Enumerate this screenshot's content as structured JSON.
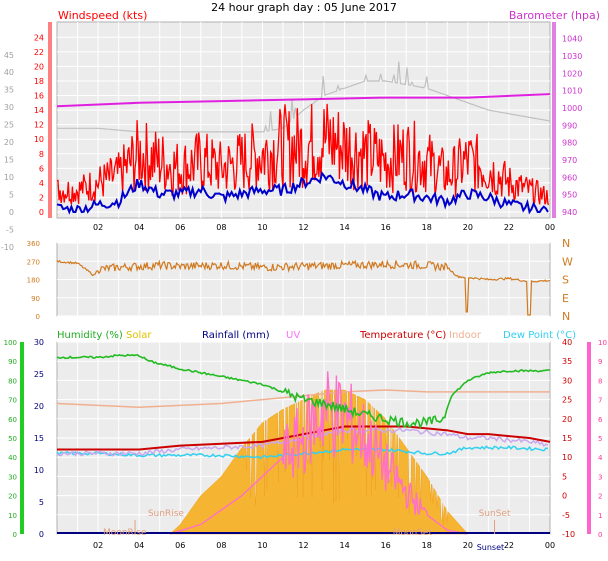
{
  "title": "24 hour graph day : 05 June 2017",
  "colors": {
    "wind": "#ff0000",
    "gust_hi": "#c0c0c0",
    "avg": "#0000cc",
    "baro": "#e020e0",
    "dir": "#d07a20",
    "hum": "#22bb22",
    "solar": "#f5b431",
    "rain": "#000080",
    "uv": "#ff70c8",
    "temp": "#cc0000",
    "indoor": "#f0b090",
    "dew": "#30d0f0",
    "plotbg": "#ececec",
    "grid": "#ffffff"
  },
  "chart_data": [
    {
      "type": "line",
      "panel": "wind-baro",
      "y_label_left": "Windspeed (kts)",
      "y_label_right": "Barometer (hpa)",
      "left_ticks_inner": [
        0,
        2,
        4,
        6,
        8,
        10,
        12,
        14,
        16,
        18,
        20,
        22,
        24
      ],
      "left_ticks_outer": [
        -10,
        -5,
        0,
        5,
        10,
        15,
        20,
        25,
        30,
        35,
        40,
        45
      ],
      "right_ticks": [
        940,
        950,
        960,
        970,
        980,
        990,
        1000,
        1010,
        1020,
        1030,
        1040
      ],
      "ylim_left": [
        0,
        25
      ],
      "ylim_right": [
        940,
        1045
      ],
      "x_ticks": [
        "02",
        "04",
        "06",
        "08",
        "10",
        "12",
        "14",
        "16",
        "18",
        "20",
        "22",
        "00"
      ],
      "x_range_hours": [
        0,
        24
      ],
      "series": [
        {
          "key": "gust",
          "x": [
            0,
            1,
            2,
            3,
            4,
            5,
            6,
            7,
            8,
            9,
            10,
            11,
            12,
            13,
            14,
            15,
            16,
            17,
            18,
            19,
            20,
            21,
            22,
            23,
            24
          ],
          "y": [
            3,
            3,
            4,
            5,
            8,
            7,
            6,
            7,
            6,
            7,
            8,
            9,
            9,
            10,
            9,
            8,
            7,
            8,
            7,
            5,
            7,
            6,
            4,
            3,
            2
          ]
        },
        {
          "key": "speed",
          "x": [
            0,
            1,
            2,
            3,
            4,
            5,
            6,
            7,
            8,
            9,
            10,
            11,
            12,
            13,
            14,
            15,
            16,
            17,
            18,
            19,
            20,
            21,
            22,
            23,
            24
          ],
          "y": [
            0.5,
            0.3,
            1,
            1.5,
            4,
            2.5,
            2.5,
            3,
            2,
            2.5,
            3,
            3,
            4,
            5,
            4,
            3,
            2,
            2.5,
            2,
            1.5,
            2.5,
            2,
            1,
            0.5,
            0.2
          ]
        },
        {
          "key": "upper-grey",
          "x": [
            0,
            2,
            4,
            6,
            8,
            10,
            11,
            12,
            13,
            14,
            15,
            16,
            17,
            18,
            19,
            20,
            21,
            22,
            23,
            24
          ],
          "y": [
            11.5,
            11.5,
            11,
            11,
            11,
            11,
            11.5,
            14,
            16,
            17,
            18,
            18,
            17.5,
            17,
            16,
            15,
            14,
            13.5,
            13,
            12.5
          ]
        },
        {
          "key": "pressure",
          "x": [
            0,
            4,
            8,
            12,
            16,
            20,
            24
          ],
          "y": [
            1001,
            1003,
            1004,
            1005,
            1006,
            1006,
            1008
          ]
        }
      ]
    },
    {
      "type": "line",
      "panel": "wind-direction",
      "right_labels": [
        "N",
        "W",
        "S",
        "E",
        "N"
      ],
      "left_ticks": [
        0,
        90,
        180,
        270,
        360
      ],
      "ylim": [
        0,
        360
      ],
      "series": [
        {
          "key": "direction",
          "x": [
            0,
            1,
            1.8,
            2,
            3,
            4,
            5,
            6,
            8,
            10,
            12,
            14,
            16,
            18,
            19,
            19.5,
            20,
            21,
            22,
            23,
            24
          ],
          "y": [
            270,
            260,
            200,
            230,
            240,
            245,
            250,
            245,
            250,
            240,
            245,
            250,
            255,
            250,
            240,
            195,
            190,
            180,
            185,
            170,
            175
          ]
        }
      ]
    },
    {
      "type": "area",
      "panel": "hum-solar-temp",
      "legend": [
        "Humidity (%)",
        "Solar",
        "Rainfall (mm)",
        "UV",
        "Temperature (°C)",
        "Indoor",
        "Dew Point (°C)"
      ],
      "humidity_ticks": [
        0,
        10,
        20,
        30,
        40,
        50,
        60,
        70,
        80,
        90,
        100
      ],
      "rain_ticks": [
        0,
        5,
        10,
        15,
        20,
        25,
        30
      ],
      "temp_ticks": [
        -10,
        -5,
        0,
        5,
        10,
        15,
        20,
        25,
        30,
        35,
        40
      ],
      "uv_ticks": [
        0,
        1,
        2,
        3,
        4,
        5,
        6,
        7,
        8,
        9,
        10
      ],
      "ylim_temp": [
        -10,
        40
      ],
      "ylim_humidity": [
        0,
        100
      ],
      "annotations": [
        "SunRise",
        "SunSet",
        "MoonRise",
        "MoonSet",
        "Sunset"
      ],
      "series": [
        {
          "key": "humidity",
          "x": [
            0,
            2,
            3,
            4,
            4.5,
            6,
            8,
            10,
            11,
            12,
            13,
            14,
            15,
            16,
            17,
            18,
            18.8,
            19.2,
            20,
            21,
            22,
            23,
            24
          ],
          "y": [
            92,
            92,
            93,
            93,
            90,
            86,
            82,
            78,
            74,
            70,
            68,
            65,
            62,
            60,
            58,
            58,
            60,
            72,
            80,
            84,
            85,
            85,
            85
          ]
        },
        {
          "key": "temperature",
          "x": [
            0,
            2,
            4,
            6,
            8,
            10,
            12,
            13,
            14,
            15,
            16,
            17,
            18,
            19,
            20,
            21,
            22,
            23,
            24
          ],
          "y": [
            12,
            12,
            12,
            13,
            13.5,
            14,
            16,
            17,
            18,
            18,
            18,
            18,
            17.5,
            17,
            16,
            16,
            15.5,
            15,
            14
          ]
        },
        {
          "key": "indoor",
          "x": [
            0,
            2,
            4,
            6,
            8,
            10,
            12,
            14,
            16,
            18,
            20,
            22,
            24
          ],
          "y": [
            24,
            23.5,
            23,
            23.5,
            24,
            25,
            26,
            27,
            27.5,
            27,
            27,
            27,
            27
          ]
        },
        {
          "key": "dewpoint",
          "x": [
            0,
            2,
            4,
            6,
            8,
            10,
            12,
            14,
            16,
            18,
            19,
            20,
            22,
            24
          ],
          "y": [
            11,
            11,
            10.5,
            10.5,
            10.5,
            10,
            11,
            12,
            12,
            11,
            11,
            12.5,
            12.5,
            12
          ]
        },
        {
          "key": "solar",
          "x": [
            5.5,
            6,
            7,
            8,
            9,
            10,
            11,
            12,
            13,
            14,
            15,
            16,
            17,
            18,
            19,
            20
          ],
          "y": [
            0,
            5,
            20,
            30,
            45,
            58,
            65,
            70,
            75,
            75,
            70,
            60,
            45,
            30,
            12,
            0
          ]
        },
        {
          "key": "uv",
          "x": [
            5.5,
            7,
            9,
            11,
            12,
            13,
            14,
            15,
            16,
            17,
            18,
            19,
            20
          ],
          "y": [
            0,
            0.5,
            2,
            4,
            5,
            6.5,
            6,
            5,
            3.5,
            2.2,
            1,
            0.2,
            0
          ]
        }
      ]
    }
  ]
}
